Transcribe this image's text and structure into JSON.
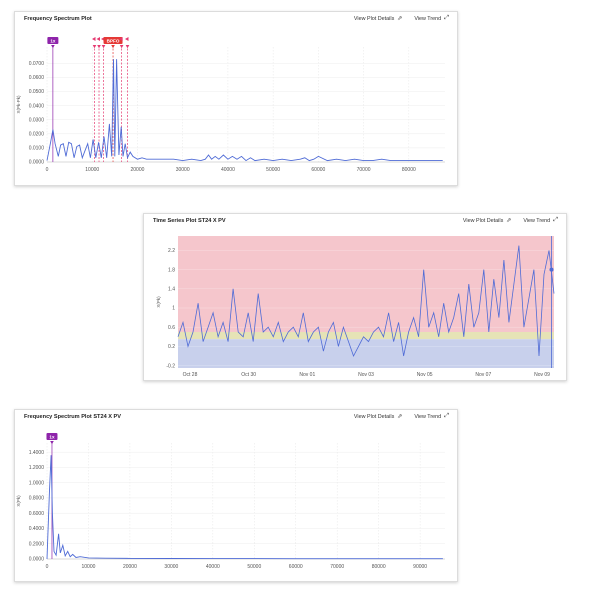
{
  "panels": {
    "freq1": {
      "title": "Frequency Spectrum Plot",
      "view_details": "View Plot Details",
      "view_trend": "View Trend",
      "details_icon": "external-link-icon",
      "trend_icon": "expand-arrows-icon"
    },
    "ts": {
      "title": "Time Series Plot ST24 X PV",
      "view_details": "View Plot Details",
      "view_trend": "View Trend",
      "details_icon": "external-link-icon",
      "trend_icon": "expand-arrows-icon"
    },
    "freq2": {
      "title": "Frequency Spectrum Plot ST24 X PV",
      "view_details": "View Plot Details",
      "view_trend": "View Trend",
      "details_icon": "external-link-icon",
      "trend_icon": "expand-arrows-icon"
    }
  },
  "chart_data": [
    {
      "type": "line",
      "ylabel": "X(Pk-Pk)",
      "xlim": [
        0,
        88000
      ],
      "ylim": [
        0,
        0.0816
      ],
      "x_ticks": [
        "0",
        "10000",
        "20000",
        "30000",
        "40000",
        "50000",
        "60000",
        "70000",
        "80000"
      ],
      "x_tick_values": [
        0,
        10000,
        20000,
        30000,
        40000,
        50000,
        60000,
        70000,
        80000
      ],
      "y_ticks": [
        "0.0000",
        "0.0100",
        "0.0200",
        "0.0300",
        "0.0400",
        "0.0500",
        "0.0600",
        "0.0700"
      ],
      "y_tick_values": [
        0,
        0.01,
        0.02,
        0.03,
        0.04,
        0.05,
        0.06,
        0.07
      ],
      "markers": [
        {
          "label": "1x",
          "x": 1300,
          "color": "#8e24aa"
        },
        {
          "label": "",
          "x": 10500,
          "color": "#e53970"
        },
        {
          "label": "",
          "x": 11500,
          "color": "#e53970"
        },
        {
          "label": "",
          "x": 12500,
          "color": "#e53970"
        },
        {
          "label": "BPFO",
          "x": 14600,
          "color": "#e53935"
        },
        {
          "label": "",
          "x": 16500,
          "color": "#e53970"
        },
        {
          "label": "",
          "x": 17800,
          "color": "#e53970"
        }
      ],
      "x": [
        0,
        800,
        1300,
        1800,
        2500,
        3000,
        3600,
        4200,
        4800,
        5400,
        6000,
        6600,
        7200,
        7800,
        8400,
        9000,
        9600,
        10200,
        10800,
        11400,
        12000,
        12600,
        13200,
        13800,
        14300,
        14700,
        15000,
        15400,
        15900,
        16400,
        16800,
        17300,
        17800,
        18400,
        19000,
        20000,
        21000,
        22000,
        24000,
        26000,
        28000,
        30000,
        32000,
        34000,
        35000,
        35700,
        36400,
        37200,
        38000,
        39000,
        40000,
        41000,
        42000,
        43000,
        44000,
        45000,
        46000,
        48000,
        50000,
        52000,
        54000,
        56000,
        57000,
        58000,
        59000,
        60000,
        62000,
        64000,
        66000,
        68000,
        70000,
        72000,
        74000,
        76000,
        78000,
        80000,
        82000,
        84000,
        86000,
        87500
      ],
      "y": [
        0.001,
        0.014,
        0.023,
        0.013,
        0.004,
        0.012,
        0.013,
        0.004,
        0.014,
        0.013,
        0.003,
        0.011,
        0.012,
        0.003,
        0.008,
        0.013,
        0.003,
        0.016,
        0.003,
        0.014,
        0.003,
        0.018,
        0.003,
        0.027,
        0.004,
        0.073,
        0.004,
        0.073,
        0.005,
        0.025,
        0.004,
        0.013,
        0.003,
        0.007,
        0.004,
        0.002,
        0.003,
        0.002,
        0.002,
        0.002,
        0.002,
        0.001,
        0.002,
        0.001,
        0.002,
        0.005,
        0.002,
        0.004,
        0.002,
        0.005,
        0.002,
        0.004,
        0.002,
        0.004,
        0.001,
        0.003,
        0.001,
        0.002,
        0.001,
        0.002,
        0.001,
        0.002,
        0.003,
        0.001,
        0.002,
        0.004,
        0.001,
        0.002,
        0.001,
        0.002,
        0.001,
        0.001,
        0.002,
        0.001,
        0.001,
        0.001,
        0.001,
        0.001,
        0.001,
        0.001
      ]
    },
    {
      "type": "line",
      "ylabel": "X(Pk)",
      "ylim": [
        -0.25,
        2.5
      ],
      "x_ticks": [
        "Oct 28",
        "Oct 30",
        "Nov 01",
        "Nov 03",
        "Nov 05",
        "Nov 07",
        "Nov 09"
      ],
      "y_ticks": [
        "-0.2",
        "0.2",
        "0.6",
        "1",
        "1.4",
        "1.8",
        "2.2"
      ],
      "y_tick_values": [
        -0.2,
        0.2,
        0.6,
        1,
        1.4,
        1.8,
        2.2
      ],
      "bands": [
        {
          "from": 0.5,
          "to": 2.5,
          "color": "#f5c6cc"
        },
        {
          "from": 0.35,
          "to": 0.5,
          "color": "#e6e3b6"
        },
        {
          "from": -0.25,
          "to": 0.35,
          "color": "#c8d0ec"
        }
      ],
      "x": [
        0,
        0.4,
        0.8,
        1.2,
        1.6,
        2.0,
        2.4,
        2.8,
        3.2,
        3.6,
        4.0,
        4.4,
        4.8,
        5.2,
        5.6,
        6.0,
        6.4,
        6.8,
        7.2,
        7.6,
        8.0,
        8.4,
        8.8,
        9.2,
        9.6,
        10.0,
        10.4,
        10.8,
        11.2,
        11.6,
        12.0,
        12.4,
        12.8,
        13.2,
        13.6,
        14.0,
        14.4,
        14.8,
        15.2,
        15.6,
        16.0,
        16.4,
        16.8,
        17.2,
        17.6,
        18.0,
        18.4,
        18.8,
        19.2,
        19.6,
        20.0,
        20.4,
        20.8,
        21.2,
        21.6,
        22.0,
        22.4,
        22.8,
        23.2,
        23.6,
        24.0,
        24.4,
        24.8,
        25.2,
        25.6,
        26.0,
        26.4,
        26.8,
        27.2,
        27.6,
        28.0,
        28.4,
        28.8,
        29.2,
        29.6,
        30.0
      ],
      "y": [
        0.4,
        0.7,
        0.2,
        0.5,
        1.1,
        0.3,
        0.6,
        0.9,
        0.4,
        0.7,
        0.3,
        1.4,
        0.5,
        0.4,
        0.9,
        0.3,
        1.3,
        0.5,
        0.6,
        0.4,
        0.7,
        0.3,
        0.5,
        0.6,
        0.4,
        0.9,
        0.3,
        0.5,
        0.6,
        0.1,
        0.5,
        0.7,
        0.2,
        0.6,
        0.3,
        0.0,
        0.2,
        0.4,
        0.3,
        0.5,
        0.6,
        0.4,
        0.9,
        0.3,
        0.7,
        0.0,
        0.5,
        0.8,
        0.4,
        1.8,
        0.6,
        0.9,
        0.4,
        1.1,
        0.5,
        0.8,
        1.3,
        0.4,
        1.5,
        0.6,
        0.9,
        1.8,
        0.5,
        1.6,
        0.8,
        2.0,
        0.7,
        1.5,
        2.3,
        0.6,
        1.2,
        1.8,
        0.0,
        1.7,
        2.2,
        1.3
      ],
      "marker_point": {
        "x": 29.8,
        "y": 1.8
      }
    },
    {
      "type": "line",
      "ylabel": "X(Pk)",
      "xlim": [
        0,
        96000
      ],
      "ylim": [
        0,
        1.52
      ],
      "x_ticks": [
        "0",
        "10000",
        "20000",
        "30000",
        "40000",
        "50000",
        "60000",
        "70000",
        "80000",
        "90000"
      ],
      "x_tick_values": [
        0,
        10000,
        20000,
        30000,
        40000,
        50000,
        60000,
        70000,
        80000,
        90000
      ],
      "y_ticks": [
        "0.0000",
        "0.2000",
        "0.4000",
        "0.6000",
        "0.8000",
        "1.0000",
        "1.2000",
        "1.4000"
      ],
      "y_tick_values": [
        0,
        0.2,
        0.4,
        0.6,
        0.8,
        1.0,
        1.2,
        1.4
      ],
      "markers": [
        {
          "label": "1x",
          "x": 1200,
          "color": "#8e24aa"
        }
      ],
      "x": [
        0,
        600,
        1000,
        1300,
        1700,
        2200,
        2800,
        3200,
        3800,
        4400,
        5000,
        5600,
        6200,
        7000,
        8000,
        10000,
        14000,
        20000,
        30000,
        40000,
        50000,
        60000,
        70000,
        80000,
        90000,
        95500
      ],
      "y": [
        0.0,
        0.9,
        1.36,
        0.6,
        0.1,
        0.05,
        0.33,
        0.08,
        0.18,
        0.04,
        0.1,
        0.03,
        0.06,
        0.02,
        0.03,
        0.015,
        0.01,
        0.008,
        0.006,
        0.005,
        0.005,
        0.004,
        0.004,
        0.004,
        0.004,
        0.004
      ]
    }
  ]
}
